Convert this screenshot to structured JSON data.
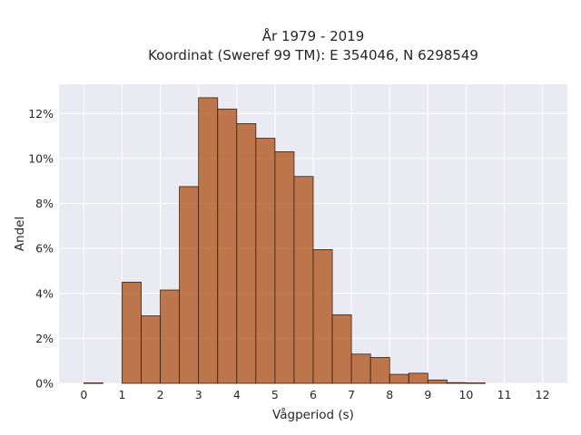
{
  "chart_data": {
    "type": "bar",
    "title_line1": "År 1979 - 2019",
    "title_line2": "Koordinat (Sweref 99 TM): E 354046, N 6298549",
    "xlabel": "Vågperiod (s)",
    "ylabel": "Andel",
    "bin_edges": [
      0,
      0.5,
      1,
      1.5,
      2,
      2.5,
      3,
      3.5,
      4,
      4.5,
      5,
      5.5,
      6,
      6.5,
      7,
      7.5,
      8,
      8.5,
      9,
      9.5,
      10,
      10.5,
      11,
      11.5,
      12
    ],
    "values": [
      0.02,
      0,
      4.5,
      3.0,
      4.15,
      8.75,
      12.7,
      12.2,
      11.55,
      10.9,
      10.3,
      9.2,
      5.95,
      3.05,
      1.3,
      1.15,
      0.4,
      0.45,
      0.15,
      0.03,
      0.02,
      0,
      0,
      0
    ],
    "x_ticks": [
      0,
      1,
      2,
      3,
      4,
      5,
      6,
      7,
      8,
      9,
      10,
      11,
      12
    ],
    "y_ticks": [
      0,
      2,
      4,
      6,
      8,
      10,
      12
    ],
    "y_tick_suffix": "%",
    "xlim": [
      -0.65,
      12.65
    ],
    "ylim": [
      0,
      13.3
    ],
    "grid": true,
    "colors": {
      "bar_fill": "#b5612e",
      "bar_edge": "#3b1f10",
      "plot_bg": "#eaeaf2",
      "grid": "#ffffff"
    }
  }
}
